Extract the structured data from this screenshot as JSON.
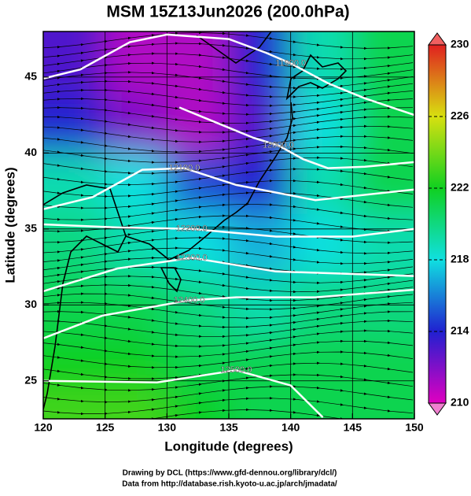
{
  "chart_data": {
    "type": "map",
    "title": "MSM 15Z13Jun2026 (200.0hPa)",
    "xlabel": "Longitude (degrees)",
    "ylabel": "Latitude  (degrees)",
    "xlim": [
      120,
      150
    ],
    "ylim": [
      22.5,
      48
    ],
    "xticks": [
      120,
      125,
      130,
      135,
      140,
      145,
      150
    ],
    "yticks": [
      25,
      30,
      35,
      40,
      45
    ],
    "grid": true,
    "field": {
      "lon": [
        122.5,
        127.5,
        132.5,
        137.5,
        142.5,
        147.5
      ],
      "lat": [
        46,
        42,
        38,
        34,
        30,
        26,
        23
      ],
      "values": [
        [
          213,
          211,
          211,
          214,
          219,
          221
        ],
        [
          214,
          212,
          211,
          213,
          218,
          221
        ],
        [
          219,
          218,
          215,
          214,
          219,
          221
        ],
        [
          220,
          219,
          218,
          217,
          218,
          219
        ],
        [
          221,
          221,
          220,
          219,
          220,
          220
        ],
        [
          222,
          222,
          221,
          221,
          221,
          221
        ],
        [
          223,
          223,
          222,
          221,
          221,
          221
        ]
      ]
    },
    "colorbar": {
      "lim": [
        210,
        230
      ],
      "ticks": [
        210,
        214,
        218,
        222,
        226,
        230
      ],
      "colors": [
        "#e000c0",
        "#2020d0",
        "#10e0e0",
        "#10d020",
        "#d8e010",
        "#e02020"
      ]
    },
    "contours": [
      {
        "label": "11900.0",
        "lon": [
          120,
          123,
          127,
          130,
          135,
          138,
          140,
          143,
          146,
          150
        ],
        "lat": [
          44.9,
          45.5,
          47.3,
          47.8,
          47.5,
          46.6,
          45.9,
          44.6,
          43.6,
          42.5
        ],
        "label_at": 6
      },
      {
        "label": "12000.0",
        "lon": [
          131,
          134,
          137,
          139,
          141,
          143,
          146,
          150
        ],
        "lat": [
          43,
          42,
          41,
          40.5,
          39.6,
          39,
          39.1,
          39.4
        ],
        "label_at": 3
      },
      {
        "label": "12100.0",
        "lon": [
          120,
          124,
          128,
          131.4,
          135.6,
          142,
          150
        ],
        "lat": [
          36.3,
          37.1,
          38.9,
          39,
          37.9,
          36.9,
          37.6
        ],
        "label_at": 3
      },
      {
        "label": "12200.0",
        "lon": [
          120,
          126,
          132,
          138.8,
          145,
          150
        ],
        "lat": [
          35.3,
          35.1,
          35,
          34.5,
          34.5,
          35
        ],
        "label_at": 2
      },
      {
        "label": "12300.0",
        "lon": [
          120,
          126,
          132,
          138.8,
          150
        ],
        "lat": [
          30.9,
          32.4,
          33.1,
          32.2,
          31.9
        ],
        "label_at": 2
      },
      {
        "label": "12400.0",
        "lon": [
          120,
          124.8,
          131.8,
          135.6,
          142,
          150
        ],
        "lat": [
          27.8,
          29.3,
          30.3,
          30.5,
          30.5,
          31
        ],
        "label_at": 2
      },
      {
        "label": "12500.0",
        "lon": [
          120,
          129.2,
          135.6,
          140,
          142.6
        ],
        "lat": [
          25,
          24.9,
          25.7,
          24.7,
          22.6
        ],
        "label_at": 2
      }
    ],
    "footer": [
      "Drawing by DCL (https://www.gfd-dennou.org/library/dcl/)",
      "Data from http://database.rish.kyoto-u.ac.jp/arch/jmadata/"
    ]
  }
}
